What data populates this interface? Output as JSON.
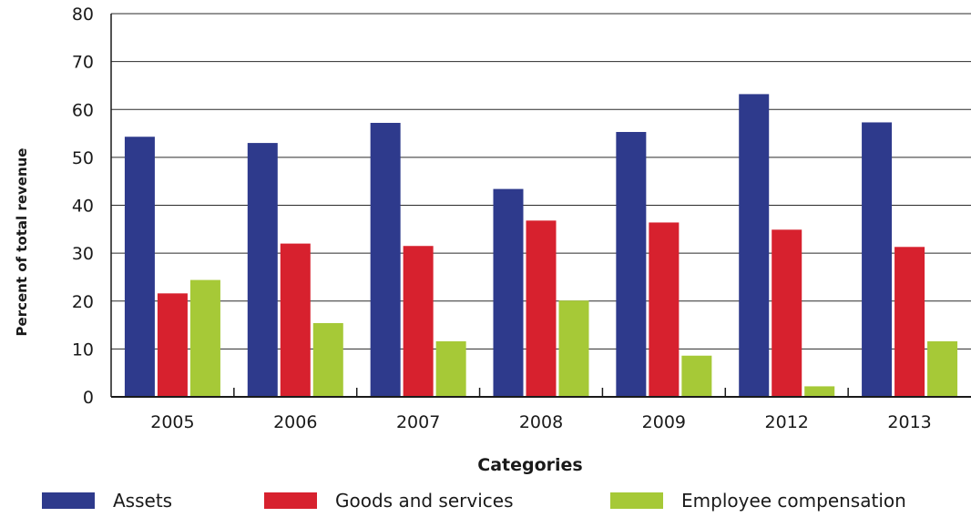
{
  "chart_data": {
    "type": "bar",
    "title": "",
    "xlabel": "Categories",
    "ylabel": "Percent of total revenue",
    "categories": [
      "2005",
      "2006",
      "2007",
      "2008",
      "2009",
      "2012",
      "2013"
    ],
    "ylim": [
      0,
      80
    ],
    "yticks": [
      0,
      10,
      20,
      30,
      40,
      50,
      60,
      70,
      80
    ],
    "grid": true,
    "legend_position": "bottom",
    "series": [
      {
        "name": "Assets",
        "color": "#2e3a8c",
        "values": [
          54.3,
          53,
          57.2,
          43.4,
          55.3,
          63.2,
          57.3
        ]
      },
      {
        "name": "Goods and services",
        "color": "#d7212e",
        "values": [
          21.6,
          32,
          31.5,
          36.8,
          36.4,
          34.9,
          31.3
        ]
      },
      {
        "name": "Employee compensation",
        "color": "#a6c937",
        "values": [
          24.4,
          15.4,
          11.6,
          20.1,
          8.6,
          2.2,
          11.6
        ]
      }
    ]
  }
}
